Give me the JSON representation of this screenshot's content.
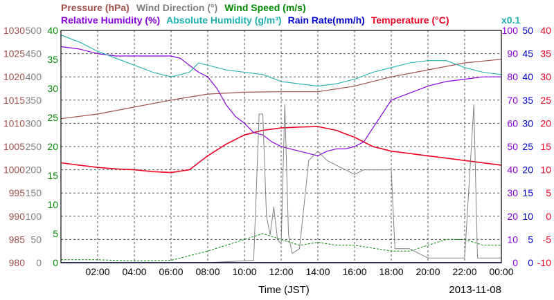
{
  "colors": {
    "pressure": "#a0504a",
    "wind_dir": "#808080",
    "wind_speed": "#008800",
    "rel_humidity": "#8800dd",
    "abs_humidity": "#20b0b0",
    "rain_rate": "#0000cc",
    "temperature": "#ee0022",
    "axis": "#000000",
    "grid": "#555555"
  },
  "header": {
    "row1": [
      {
        "key": "pressure",
        "text": "Pressure (hPa)"
      },
      {
        "key": "wind_dir",
        "text": "Wind Direction (°)"
      },
      {
        "key": "wind_speed",
        "text": "Wind Speed (m/s)"
      }
    ],
    "row2": [
      {
        "key": "rel_humidity",
        "text": "Relative Humidity (%)"
      },
      {
        "key": "abs_humidity",
        "text": "Absolute Humidity (g/m³)"
      },
      {
        "key": "rain_rate",
        "text": "Rain Rate(mm/h)"
      },
      {
        "key": "temperature",
        "text": "Temperature (°C)"
      }
    ],
    "abs_humidity_scale_note": "x0.1"
  },
  "footer": {
    "xlabel": "Time (JST)",
    "date": "2013-11-08"
  },
  "chart_data": {
    "type": "line",
    "grid": true,
    "x_ticks": [
      "02:00",
      "04:00",
      "06:00",
      "08:00",
      "10:00",
      "12:00",
      "14:00",
      "16:00",
      "18:00",
      "20:00",
      "22:00",
      "00:00"
    ],
    "x_range_hours": [
      0,
      24
    ],
    "axes": {
      "pressure": {
        "side": "left",
        "ticks": [
          "1030",
          "1025",
          "1020",
          "1015",
          "1010",
          "1005",
          "1000",
          "995",
          "990",
          "985",
          "980"
        ],
        "range": [
          980,
          1030
        ]
      },
      "wind_dir": {
        "side": "left",
        "ticks": [
          "500",
          "450",
          "400",
          "350",
          "300",
          "250",
          "200",
          "150",
          "100",
          "50",
          "0"
        ],
        "range": [
          0,
          500
        ]
      },
      "wind_speed": {
        "side": "left",
        "ticks": [
          "40",
          "35",
          "30",
          "25",
          "20",
          "15",
          "10",
          "5",
          "0"
        ],
        "range": [
          0,
          40
        ]
      },
      "rel_humidity": {
        "side": "right",
        "ticks": [
          "100",
          "90",
          "80",
          "70",
          "60",
          "50",
          "40",
          "30",
          "20",
          "10",
          "0"
        ],
        "range": [
          0,
          100
        ]
      },
      "rain_rate": {
        "side": "right",
        "ticks": [
          "50",
          "45",
          "40",
          "35",
          "30",
          "25",
          "20",
          "15",
          "10",
          "5",
          "0"
        ],
        "range": [
          0,
          50
        ]
      },
      "temperature": {
        "side": "right",
        "ticks": [
          "40",
          "35",
          "30",
          "25",
          "20",
          "15",
          "10",
          "5",
          "0",
          "-5",
          "-10"
        ],
        "range": [
          -10,
          40
        ]
      }
    },
    "series": [
      {
        "key": "pressure",
        "name": "Pressure (hPa)",
        "axis": "pressure",
        "points": [
          [
            0,
            1011
          ],
          [
            2,
            1012
          ],
          [
            4,
            1013.5
          ],
          [
            6,
            1015
          ],
          [
            8,
            1016.3
          ],
          [
            10,
            1016.7
          ],
          [
            12,
            1016.8
          ],
          [
            14,
            1016.8
          ],
          [
            16,
            1018
          ],
          [
            18,
            1020
          ],
          [
            20,
            1021.5
          ],
          [
            22,
            1023
          ],
          [
            24,
            1023.8
          ]
        ]
      },
      {
        "key": "temperature",
        "name": "Temperature (°C)",
        "axis": "temperature",
        "points": [
          [
            0,
            11.5
          ],
          [
            1,
            11
          ],
          [
            2,
            10.5
          ],
          [
            3,
            10.2
          ],
          [
            4,
            10
          ],
          [
            5,
            9.6
          ],
          [
            6,
            9.4
          ],
          [
            7,
            10
          ],
          [
            8,
            13
          ],
          [
            9,
            15.5
          ],
          [
            10,
            17.5
          ],
          [
            11,
            18.5
          ],
          [
            12,
            19
          ],
          [
            13,
            19.2
          ],
          [
            14,
            19.3
          ],
          [
            15,
            18.5
          ],
          [
            16,
            17
          ],
          [
            17,
            15
          ],
          [
            18,
            14
          ],
          [
            19,
            13.5
          ],
          [
            20,
            13
          ],
          [
            22,
            12
          ],
          [
            24,
            11
          ]
        ]
      },
      {
        "key": "rel_humidity",
        "name": "Relative Humidity (%)",
        "axis": "rel_humidity",
        "points": [
          [
            0,
            93
          ],
          [
            1,
            92
          ],
          [
            2,
            90
          ],
          [
            3,
            89
          ],
          [
            4,
            89
          ],
          [
            5,
            89
          ],
          [
            6,
            89
          ],
          [
            6.5,
            88
          ],
          [
            7,
            85
          ],
          [
            7.5,
            82
          ],
          [
            8,
            80
          ],
          [
            8.5,
            75
          ],
          [
            9,
            68
          ],
          [
            9.5,
            63
          ],
          [
            10,
            60
          ],
          [
            10.5,
            56
          ],
          [
            11,
            55
          ],
          [
            11.5,
            52
          ],
          [
            12,
            50
          ],
          [
            12.5,
            49
          ],
          [
            13,
            48
          ],
          [
            13.5,
            47
          ],
          [
            14,
            46
          ],
          [
            14.5,
            48
          ],
          [
            15,
            49
          ],
          [
            15.5,
            49
          ],
          [
            16,
            50
          ],
          [
            16.5,
            52
          ],
          [
            17,
            58
          ],
          [
            17.5,
            64
          ],
          [
            18,
            70
          ],
          [
            19,
            73
          ],
          [
            20,
            76
          ],
          [
            21,
            78
          ],
          [
            22,
            79
          ],
          [
            23,
            80
          ],
          [
            24,
            80
          ]
        ]
      },
      {
        "key": "abs_humidity",
        "name": "Absolute Humidity (g/m³)",
        "axis": "rel_humidity",
        "points": [
          [
            0,
            98
          ],
          [
            1,
            95
          ],
          [
            2,
            91
          ],
          [
            3,
            88
          ],
          [
            4,
            85
          ],
          [
            5,
            82
          ],
          [
            6,
            80
          ],
          [
            7,
            82
          ],
          [
            7.5,
            86
          ],
          [
            8,
            85
          ],
          [
            9,
            83
          ],
          [
            10,
            82
          ],
          [
            11,
            81
          ],
          [
            12,
            78
          ],
          [
            13,
            77
          ],
          [
            14,
            76
          ],
          [
            15,
            77
          ],
          [
            16,
            79
          ],
          [
            17,
            82
          ],
          [
            18,
            84
          ],
          [
            19,
            86
          ],
          [
            20,
            87
          ],
          [
            21,
            87
          ],
          [
            22,
            84
          ],
          [
            23,
            82
          ],
          [
            24,
            81
          ]
        ]
      },
      {
        "key": "wind_dir",
        "name": "Wind Direction (°)",
        "axis": "wind_dir",
        "points": [
          [
            0,
            0
          ],
          [
            8,
            0
          ],
          [
            10.5,
            5
          ],
          [
            10.8,
            320
          ],
          [
            11,
            320
          ],
          [
            11.2,
            100
          ],
          [
            11.4,
            60
          ],
          [
            11.6,
            120
          ],
          [
            11.8,
            50
          ],
          [
            12,
            40
          ],
          [
            12.2,
            340
          ],
          [
            12.4,
            60
          ],
          [
            12.6,
            20
          ],
          [
            13,
            30
          ],
          [
            13.5,
            220
          ],
          [
            14,
            240
          ],
          [
            14.5,
            220
          ],
          [
            15,
            210
          ],
          [
            15.5,
            200
          ],
          [
            16,
            190
          ],
          [
            16.5,
            200
          ],
          [
            17,
            200
          ],
          [
            17.5,
            200
          ],
          [
            18,
            200
          ],
          [
            18.2,
            30
          ],
          [
            19,
            30
          ],
          [
            20,
            10
          ],
          [
            21,
            10
          ],
          [
            22,
            10
          ],
          [
            22.5,
            340
          ],
          [
            22.7,
            10
          ],
          [
            24,
            10
          ]
        ]
      },
      {
        "key": "wind_speed",
        "name": "Wind Speed (m/s)",
        "axis": "wind_speed",
        "points": [
          [
            0,
            0.5
          ],
          [
            2,
            0.5
          ],
          [
            4,
            0.3
          ],
          [
            6,
            0.4
          ],
          [
            8,
            2
          ],
          [
            9,
            3
          ],
          [
            10,
            4
          ],
          [
            11,
            5
          ],
          [
            12,
            4
          ],
          [
            13,
            3
          ],
          [
            14,
            3.5
          ],
          [
            15,
            3
          ],
          [
            16,
            3
          ],
          [
            17,
            2.5
          ],
          [
            18,
            2
          ],
          [
            19,
            2
          ],
          [
            20,
            3
          ],
          [
            21,
            4
          ],
          [
            22,
            4
          ],
          [
            23,
            3
          ],
          [
            24,
            3
          ]
        ]
      },
      {
        "key": "rain_rate",
        "name": "Rain Rate(mm/h)",
        "axis": "rain_rate",
        "points": [
          [
            0,
            0
          ],
          [
            24,
            0
          ]
        ]
      }
    ]
  }
}
